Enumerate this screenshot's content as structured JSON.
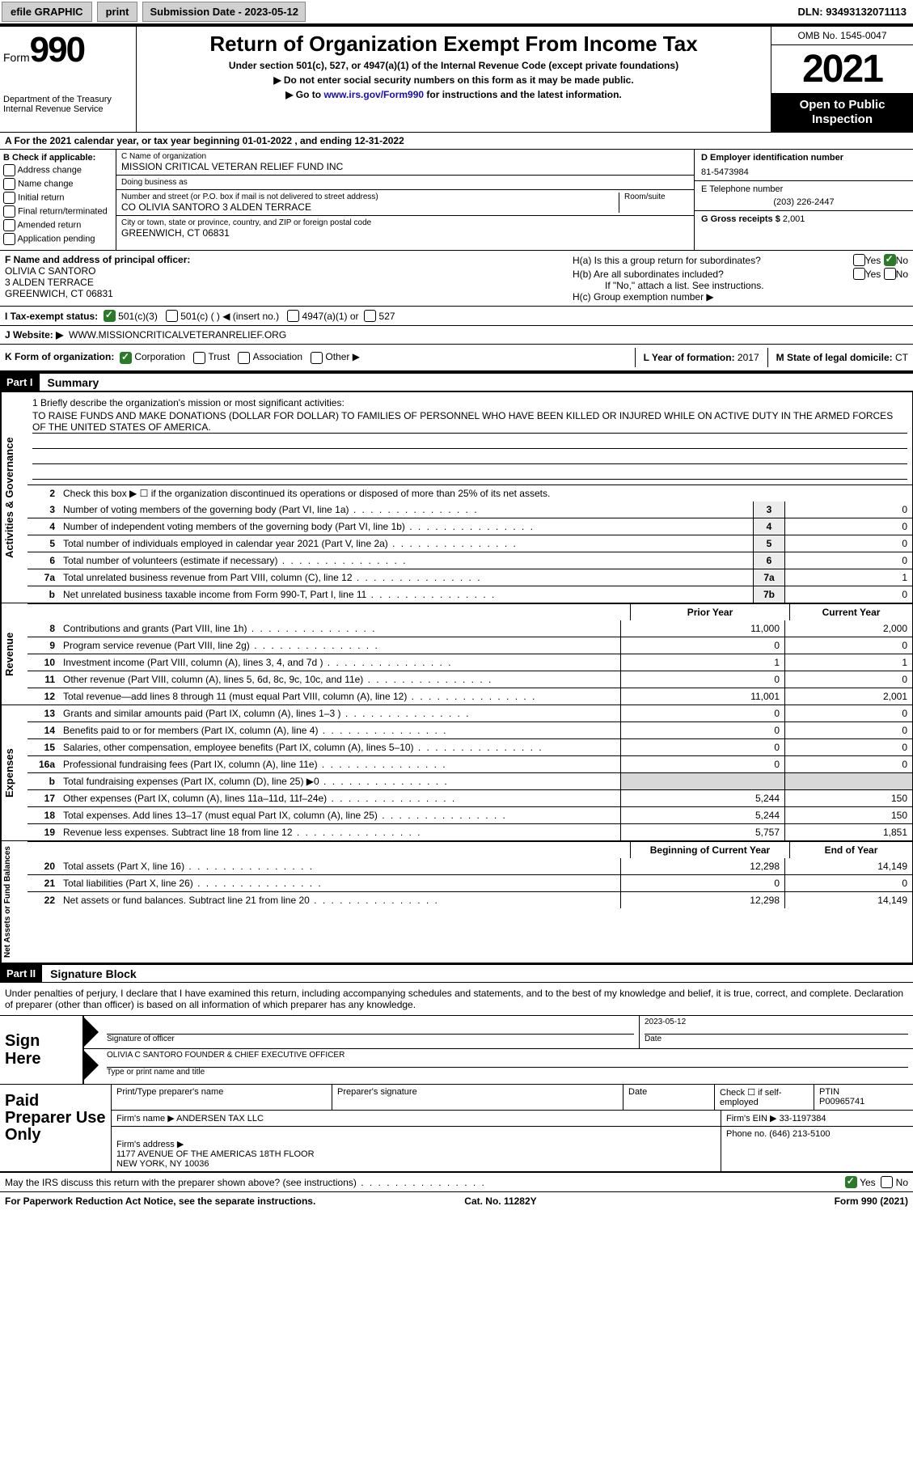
{
  "topbar": {
    "efile": "efile GRAPHIC",
    "print": "print",
    "submission": "Submission Date - 2023-05-12",
    "dln": "DLN: 93493132071113"
  },
  "header": {
    "form_prefix": "Form",
    "form_number": "990",
    "title": "Return of Organization Exempt From Income Tax",
    "subtitle": "Under section 501(c), 527, or 4947(a)(1) of the Internal Revenue Code (except private foundations)",
    "note1": "▶ Do not enter social security numbers on this form as it may be made public.",
    "note2_pre": "▶ Go to ",
    "note2_link": "www.irs.gov/Form990",
    "note2_post": " for instructions and the latest information.",
    "dept": "Department of the Treasury\nInternal Revenue Service",
    "omb": "OMB No. 1545-0047",
    "year": "2021",
    "open": "Open to Public Inspection"
  },
  "rowA": "A For the 2021 calendar year, or tax year beginning 01-01-2022   , and ending 12-31-2022",
  "colB": {
    "header": "B Check if applicable:",
    "items": [
      "Address change",
      "Name change",
      "Initial return",
      "Final return/terminated",
      "Amended return",
      "Application pending"
    ]
  },
  "colC": {
    "name_lbl": "C Name of organization",
    "name": "MISSION CRITICAL VETERAN RELIEF FUND INC",
    "dba_lbl": "Doing business as",
    "dba": "",
    "addr_lbl": "Number and street (or P.O. box if mail is not delivered to street address)",
    "addr": "CO OLIVIA SANTORO 3 ALDEN TERRACE",
    "room_lbl": "Room/suite",
    "city_lbl": "City or town, state or province, country, and ZIP or foreign postal code",
    "city": "GREENWICH, CT  06831"
  },
  "colD": {
    "ein_lbl": "D Employer identification number",
    "ein": "81-5473984",
    "phone_lbl": "E Telephone number",
    "phone": "(203) 226-2447",
    "gross_lbl": "G Gross receipts $",
    "gross": "2,001"
  },
  "officer": {
    "lbl": "F Name and address of principal officer:",
    "name": "OLIVIA C SANTORO",
    "addr1": "3 ALDEN TERRACE",
    "addr2": "GREENWICH, CT  06831"
  },
  "boxH": {
    "a": "H(a)  Is this a group return for subordinates?",
    "b": "H(b)  Are all subordinates included?",
    "note": "If \"No,\" attach a list. See instructions.",
    "c": "H(c)  Group exemption number ▶",
    "yes": "Yes",
    "no": "No"
  },
  "status": {
    "lbl": "I   Tax-exempt status:",
    "o1": "501(c)(3)",
    "o2": "501(c) (  ) ◀ (insert no.)",
    "o3": "4947(a)(1) or",
    "o4": "527"
  },
  "website": {
    "lbl": "J  Website: ▶",
    "val": "WWW.MISSIONCRITICALVETERANRELIEF.ORG"
  },
  "formorg": {
    "lbl": "K Form of organization:",
    "corp": "Corporation",
    "trust": "Trust",
    "assoc": "Association",
    "other": "Other ▶",
    "yof_lbl": "L Year of formation:",
    "yof": "2017",
    "state_lbl": "M State of legal domicile:",
    "state": "CT"
  },
  "part1": {
    "header": "Part I",
    "title": "Summary",
    "mission_lbl": "1  Briefly describe the organization's mission or most significant activities:",
    "mission": "TO RAISE FUNDS AND MAKE DONATIONS (DOLLAR FOR DOLLAR) TO FAMILIES OF PERSONNEL WHO HAVE BEEN KILLED OR INJURED WHILE ON ACTIVE DUTY IN THE ARMED FORCES OF THE UNITED STATES OF AMERICA.",
    "line2": "Check this box ▶ ☐  if the organization discontinued its operations or disposed of more than 25% of its net assets.",
    "lines_top": [
      {
        "n": "3",
        "d": "Number of voting members of the governing body (Part VI, line 1a)",
        "b": "3",
        "v": "0"
      },
      {
        "n": "4",
        "d": "Number of independent voting members of the governing body (Part VI, line 1b)",
        "b": "4",
        "v": "0"
      },
      {
        "n": "5",
        "d": "Total number of individuals employed in calendar year 2021 (Part V, line 2a)",
        "b": "5",
        "v": "0"
      },
      {
        "n": "6",
        "d": "Total number of volunteers (estimate if necessary)",
        "b": "6",
        "v": "0"
      },
      {
        "n": "7a",
        "d": "Total unrelated business revenue from Part VIII, column (C), line 12",
        "b": "7a",
        "v": "1"
      },
      {
        "n": "b",
        "d": "Net unrelated business taxable income from Form 990-T, Part I, line 11",
        "b": "7b",
        "v": "0"
      }
    ],
    "col_prior": "Prior Year",
    "col_current": "Current Year",
    "revenue": [
      {
        "n": "8",
        "d": "Contributions and grants (Part VIII, line 1h)",
        "p": "11,000",
        "c": "2,000"
      },
      {
        "n": "9",
        "d": "Program service revenue (Part VIII, line 2g)",
        "p": "0",
        "c": "0"
      },
      {
        "n": "10",
        "d": "Investment income (Part VIII, column (A), lines 3, 4, and 7d )",
        "p": "1",
        "c": "1"
      },
      {
        "n": "11",
        "d": "Other revenue (Part VIII, column (A), lines 5, 6d, 8c, 9c, 10c, and 11e)",
        "p": "0",
        "c": "0"
      },
      {
        "n": "12",
        "d": "Total revenue—add lines 8 through 11 (must equal Part VIII, column (A), line 12)",
        "p": "11,001",
        "c": "2,001"
      }
    ],
    "expenses": [
      {
        "n": "13",
        "d": "Grants and similar amounts paid (Part IX, column (A), lines 1–3 )",
        "p": "0",
        "c": "0"
      },
      {
        "n": "14",
        "d": "Benefits paid to or for members (Part IX, column (A), line 4)",
        "p": "0",
        "c": "0"
      },
      {
        "n": "15",
        "d": "Salaries, other compensation, employee benefits (Part IX, column (A), lines 5–10)",
        "p": "0",
        "c": "0"
      },
      {
        "n": "16a",
        "d": "Professional fundraising fees (Part IX, column (A), line 11e)",
        "p": "0",
        "c": "0"
      },
      {
        "n": "b",
        "d": "Total fundraising expenses (Part IX, column (D), line 25) ▶0",
        "p": "",
        "c": "",
        "grey": true
      },
      {
        "n": "17",
        "d": "Other expenses (Part IX, column (A), lines 11a–11d, 11f–24e)",
        "p": "5,244",
        "c": "150"
      },
      {
        "n": "18",
        "d": "Total expenses. Add lines 13–17 (must equal Part IX, column (A), line 25)",
        "p": "5,244",
        "c": "150"
      },
      {
        "n": "19",
        "d": "Revenue less expenses. Subtract line 18 from line 12",
        "p": "5,757",
        "c": "1,851"
      }
    ],
    "col_begin": "Beginning of Current Year",
    "col_end": "End of Year",
    "netassets": [
      {
        "n": "20",
        "d": "Total assets (Part X, line 16)",
        "p": "12,298",
        "c": "14,149"
      },
      {
        "n": "21",
        "d": "Total liabilities (Part X, line 26)",
        "p": "0",
        "c": "0"
      },
      {
        "n": "22",
        "d": "Net assets or fund balances. Subtract line 21 from line 20",
        "p": "12,298",
        "c": "14,149"
      }
    ],
    "side_gov": "Activities & Governance",
    "side_rev": "Revenue",
    "side_exp": "Expenses",
    "side_net": "Net Assets or Fund Balances"
  },
  "part2": {
    "header": "Part II",
    "title": "Signature Block",
    "text": "Under penalties of perjury, I declare that I have examined this return, including accompanying schedules and statements, and to the best of my knowledge and belief, it is true, correct, and complete. Declaration of preparer (other than officer) is based on all information of which preparer has any knowledge."
  },
  "sign": {
    "here": "Sign Here",
    "sig_lbl": "Signature of officer",
    "date": "2023-05-12",
    "date_lbl": "Date",
    "name": "OLIVIA C SANTORO  FOUNDER & CHIEF EXECUTIVE OFFICER",
    "name_lbl": "Type or print name and title"
  },
  "paid": {
    "here": "Paid Preparer Use Only",
    "r1": {
      "c1": "Print/Type preparer's name",
      "c2": "Preparer's signature",
      "c3": "Date",
      "c4": "Check ☐ if self-employed",
      "c5_lbl": "PTIN",
      "c5": "P00965741"
    },
    "r2": {
      "lbl": "Firm's name    ▶",
      "val": "ANDERSEN TAX LLC",
      "ein_lbl": "Firm's EIN ▶",
      "ein": "33-1197384"
    },
    "r3": {
      "lbl": "Firm's address ▶",
      "val": "1177 AVENUE OF THE AMERICAS 18TH FLOOR\nNEW YORK, NY  10036",
      "ph_lbl": "Phone no.",
      "ph": "(646) 213-5100"
    }
  },
  "discuss": {
    "text": "May the IRS discuss this return with the preparer shown above? (see instructions)",
    "yes": "Yes",
    "no": "No"
  },
  "footer": {
    "left": "For Paperwork Reduction Act Notice, see the separate instructions.",
    "mid": "Cat. No. 11282Y",
    "right": "Form 990 (2021)"
  }
}
